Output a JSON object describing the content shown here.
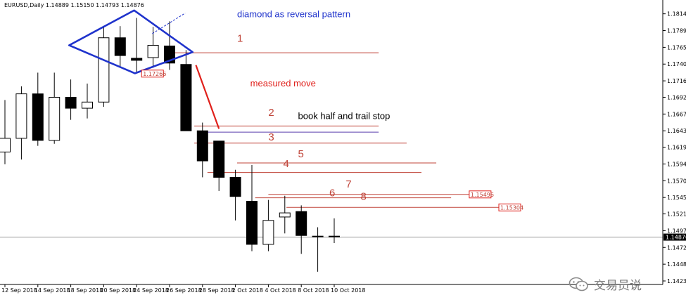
{
  "header": {
    "symbol_line": "EURUSD,Daily  1.14889 1.15150 1.14793 1.14876"
  },
  "watermark": {
    "text": "交易员说",
    "icon": "wechat-icon"
  },
  "colors": {
    "diamond": "#1f33cc",
    "measured": "#e0201b",
    "level": "#c0453a",
    "candle": "#000000",
    "price_line": "#9a9a9a"
  },
  "chart_data": {
    "type": "candlestick",
    "title": "diamond as reversal pattern",
    "symbol": "EURUSD",
    "timeframe": "Daily",
    "ohlc_header": [
      1.14889,
      1.1515,
      1.14793,
      1.14876
    ],
    "ylim": [
      1.14235,
      1.1827
    ],
    "y_ticks": [
      "1.18140",
      "1.17895",
      "1.17650",
      "1.17405",
      "1.17160",
      "1.16920",
      "1.16675",
      "1.16430",
      "1.16190",
      "1.15945",
      "1.15700",
      "1.15455",
      "1.15215",
      "1.14970",
      "1.14725",
      "1.14480",
      "1.14235"
    ],
    "current_price_label": "1.14876",
    "x_tick_labels": [
      {
        "bar": 0,
        "label": "12 Sep 2018"
      },
      {
        "bar": 2,
        "label": "14 Sep 2018"
      },
      {
        "bar": 4,
        "label": "18 Sep 2018"
      },
      {
        "bar": 6,
        "label": "20 Sep 2018"
      },
      {
        "bar": 8,
        "label": "24 Sep 2018"
      },
      {
        "bar": 10,
        "label": "26 Sep 2018"
      },
      {
        "bar": 12,
        "label": "28 Sep 2018"
      },
      {
        "bar": 14,
        "label": "2 Oct 2018"
      },
      {
        "bar": 16,
        "label": "4 Oct 2018"
      },
      {
        "bar": 18,
        "label": "8 Oct 2018"
      },
      {
        "bar": 20,
        "label": "10 Oct 2018"
      }
    ],
    "candles": [
      {
        "o": 1.1612,
        "h": 1.1688,
        "l": 1.1594,
        "c": 1.1632
      },
      {
        "o": 1.1632,
        "h": 1.1708,
        "l": 1.1601,
        "c": 1.1697
      },
      {
        "o": 1.1697,
        "h": 1.1728,
        "l": 1.1621,
        "c": 1.1629
      },
      {
        "o": 1.1629,
        "h": 1.1728,
        "l": 1.1624,
        "c": 1.1692
      },
      {
        "o": 1.1692,
        "h": 1.1718,
        "l": 1.1659,
        "c": 1.1676
      },
      {
        "o": 1.1676,
        "h": 1.1712,
        "l": 1.1661,
        "c": 1.1685
      },
      {
        "o": 1.1685,
        "h": 1.1794,
        "l": 1.1678,
        "c": 1.1779
      },
      {
        "o": 1.1779,
        "h": 1.1796,
        "l": 1.1737,
        "c": 1.1753
      },
      {
        "o": 1.1749,
        "h": 1.1808,
        "l": 1.1728,
        "c": 1.1746
      },
      {
        "o": 1.175,
        "h": 1.1795,
        "l": 1.1735,
        "c": 1.1768
      },
      {
        "o": 1.1767,
        "h": 1.1803,
        "l": 1.1732,
        "c": 1.1742
      },
      {
        "o": 1.174,
        "h": 1.1761,
        "l": 1.1643,
        "c": 1.1643
      },
      {
        "o": 1.1643,
        "h": 1.1655,
        "l": 1.1575,
        "c": 1.1599
      },
      {
        "o": 1.1628,
        "h": 1.1628,
        "l": 1.1555,
        "c": 1.1575
      },
      {
        "o": 1.1575,
        "h": 1.1586,
        "l": 1.1512,
        "c": 1.1547
      },
      {
        "o": 1.154,
        "h": 1.1593,
        "l": 1.1467,
        "c": 1.1477
      },
      {
        "o": 1.1477,
        "h": 1.1542,
        "l": 1.1467,
        "c": 1.1512
      },
      {
        "o": 1.1517,
        "h": 1.1548,
        "l": 1.1493,
        "c": 1.1523
      },
      {
        "o": 1.1525,
        "h": 1.1534,
        "l": 1.1463,
        "c": 1.149
      },
      {
        "o": 1.1489,
        "h": 1.1502,
        "l": 1.1437,
        "c": 1.1488
      },
      {
        "o": 1.1489,
        "h": 1.1515,
        "l": 1.1479,
        "c": 1.1488
      }
    ],
    "diamond": [
      {
        "bar": 3.9,
        "price": 1.1768
      },
      {
        "bar": 7.85,
        "price": 1.1819
      },
      {
        "bar": 11.4,
        "price": 1.1758
      },
      {
        "bar": 7.9,
        "price": 1.1727
      }
    ],
    "diamond_breakout_label": "1.17266",
    "dashed_extension": [
      {
        "bar": 8.95,
        "price": 1.1785
      },
      {
        "bar": 10.95,
        "price": 1.1815
      }
    ],
    "measured_move_line": [
      {
        "bar": 11.6,
        "price": 1.1739
      },
      {
        "bar": 13.0,
        "price": 1.1646
      }
    ],
    "levels": [
      {
        "id": "1",
        "price": 1.1757,
        "from_bar": 10.1,
        "to_bar": 22.7,
        "label_bar": 14.1,
        "label_price": 1.1773
      },
      {
        "id": "2",
        "price": 1.165,
        "from_bar": 11.5,
        "to_bar": 22.7,
        "label_bar": 16.0,
        "label_price": 1.1665
      },
      {
        "id": "3",
        "price": 1.1625,
        "from_bar": 11.5,
        "to_bar": 24.4,
        "label_bar": 16.0,
        "label_price": 1.1629
      },
      {
        "id": "4",
        "price": 1.1582,
        "from_bar": 12.3,
        "to_bar": 25.3,
        "label_bar": 16.9,
        "label_price": 1.159
      },
      {
        "id": "5",
        "price": 1.1596,
        "from_bar": 14.1,
        "to_bar": 26.2,
        "label_bar": 17.8,
        "label_price": 1.1604
      },
      {
        "id": "6",
        "price": 1.1545,
        "from_bar": 15.2,
        "to_bar": 27.1,
        "label_bar": 19.7,
        "label_price": 1.1547
      },
      {
        "id": "7",
        "price": 1.155,
        "from_bar": 16.0,
        "to_bar": 28.2,
        "label_bar": 20.7,
        "label_price": 1.156
      },
      {
        "id": "8",
        "price": 1.1531,
        "from_bar": 17.1,
        "to_bar": 30.0,
        "label_bar": 21.6,
        "label_price": 1.1542
      }
    ],
    "level_price_tags": [
      {
        "text": "1.15496",
        "price": 1.155,
        "bar": 28.2
      },
      {
        "text": "1.15304",
        "price": 1.1531,
        "bar": 30.0
      }
    ],
    "marker_line": {
      "price": 1.1641,
      "from_bar": 11.9,
      "to_bar": 22.7
    },
    "current_price": 1.14876,
    "annotations": [
      {
        "text": "diamond as reversal pattern",
        "bar": 14.1,
        "price": 1.1809,
        "color": "#1f33cc"
      },
      {
        "text": "measured move",
        "bar": 14.9,
        "price": 1.1708,
        "color": "#e0201b"
      },
      {
        "text": "book half and trail stop",
        "bar": 17.8,
        "price": 1.166,
        "color": "#000000"
      }
    ]
  }
}
